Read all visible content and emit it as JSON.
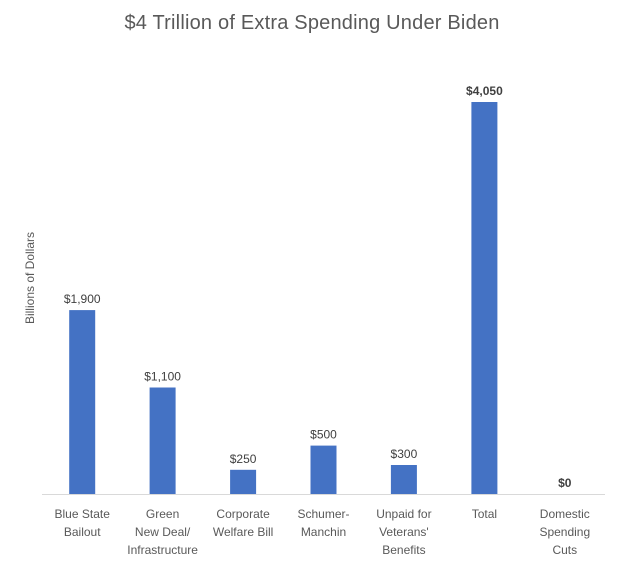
{
  "chart_data": {
    "type": "bar",
    "title": "$4 Trillion of Extra Spending Under Biden",
    "ylabel": "Billions of Dollars",
    "xlabel": "",
    "categories": [
      [
        "Blue State",
        "Bailout"
      ],
      [
        "Green",
        "New Deal/",
        "Infrastructure"
      ],
      [
        "Corporate",
        "Welfare Bill"
      ],
      [
        "Schumer-",
        "Manchin"
      ],
      [
        "Unpaid for",
        "Veterans'",
        "Benefits"
      ],
      [
        "Total"
      ],
      [
        "Domestic",
        "Spending",
        "Cuts"
      ]
    ],
    "values": [
      1900,
      1100,
      250,
      500,
      300,
      4050,
      0
    ],
    "data_labels": [
      "$1,900",
      "$1,100",
      "$250",
      "$500",
      "$300",
      "$4,050",
      "$0"
    ],
    "bold_labels": [
      false,
      false,
      false,
      false,
      false,
      true,
      true
    ],
    "ylim": [
      0,
      4050
    ],
    "grid": false,
    "legend": "none",
    "colors": {
      "bar": "#4472C4",
      "axis": "#D9D9D9"
    }
  }
}
